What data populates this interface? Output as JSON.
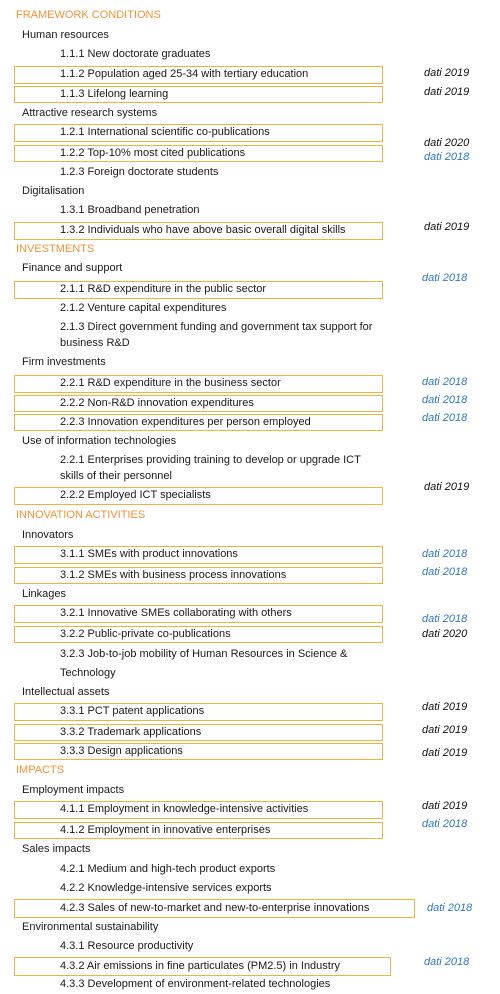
{
  "colors": {
    "section": "#f39237",
    "highlight_border": "#f0b33c",
    "note_blue": "#2f78c4",
    "note_black": "#111111"
  },
  "sections": {
    "framework": "FRAMEWORK CONDITIONS",
    "investments": "INVESTMENTS",
    "innovation": "INNOVATION ACTIVITIES",
    "impacts": "IMPACTS"
  },
  "groups": {
    "human_resources": "Human resources",
    "research_systems": "Attractive research systems",
    "digitalisation": "Digitalisation",
    "finance_support": "Finance and support",
    "firm_investments": "Firm investments",
    "use_it": "Use of information technologies",
    "innovators": "Innovators",
    "linkages": "Linkages",
    "intellectual_assets": "Intellectual assets",
    "employment_impacts": "Employment impacts",
    "sales_impacts": "Sales impacts",
    "environmental": "Environmental sustainability"
  },
  "items": {
    "i111": "1.1.1 New doctorate graduates",
    "i112": "1.1.2 Population aged 25-34 with tertiary education",
    "i113": "1.1.3 Lifelong learning",
    "i121": "1.2.1 International scientific co-publications",
    "i122": "1.2.2 Top-10% most cited publications",
    "i123": "1.2.3 Foreign doctorate students",
    "i131": "1.3.1 Broadband penetration",
    "i132": "1.3.2 Individuals who have above basic overall digital skills",
    "i211": "2.1.1 R&D expenditure in the public sector",
    "i212": "2.1.2 Venture capital expenditures",
    "i213a": "2.1.3 Direct government funding and government tax support for",
    "i213b": "business R&D",
    "i221": "2.2.1 R&D expenditure in the business sector",
    "i222": "2.2.2 Non-R&D innovation expenditures",
    "i223": "2.2.3 Innovation expenditures per person employed",
    "i231a": "2.2.1 Enterprises providing training to develop or upgrade ICT",
    "i231b": "skills of their personnel",
    "i232": "2.2.2 Employed ICT specialists",
    "i311": "3.1.1 SMEs with product innovations",
    "i312": "3.1.2 SMEs with business process innovations",
    "i321": "3.2.1 Innovative SMEs collaborating with others",
    "i322": "3.2.2 Public-private co-publications",
    "i323a": "3.2.3 Job-to-job mobility of Human Resources in Science &",
    "i323b": "Technology",
    "i331": "3.3.1 PCT patent applications",
    "i332": "3.3.2 Trademark applications",
    "i333": "3.3.3 Design applications",
    "i411": "4.1.1 Employment in knowledge-intensive activities",
    "i412": "4.1.2 Employment in innovative enterprises",
    "i421": "4.2.1 Medium and high-tech product exports",
    "i422": "4.2.2 Knowledge-intensive services exports",
    "i423": "4.2.3 Sales of new-to-market and new-to-enterprise innovations",
    "i431": "4.3.1 Resource productivity",
    "i432": "4.3.2 Air emissions in fine particulates (PM2.5) in Industry",
    "i433": "4.3.3 Development of environment-related technologies"
  },
  "notes": {
    "n112": "dati 2019",
    "n113": "dati 2019",
    "n121": "dati 2020",
    "n122": "dati 2018",
    "n132": "dati 2019",
    "n211": "dati 2018",
    "n221": "dati 2018",
    "n222": "dati 2018",
    "n223": "dati 2018",
    "n232": "dati 2019",
    "n311": "dati 2018",
    "n312": "dati 2018",
    "n321": "dati 2018",
    "n322": "dati 2020",
    "n331": "dati 2019",
    "n332": "dati 2019",
    "n333": "dati 2019",
    "n411": "dati 2019",
    "n412": "dati 2018",
    "n423": "dati 2018",
    "n432": "dati 2018"
  }
}
